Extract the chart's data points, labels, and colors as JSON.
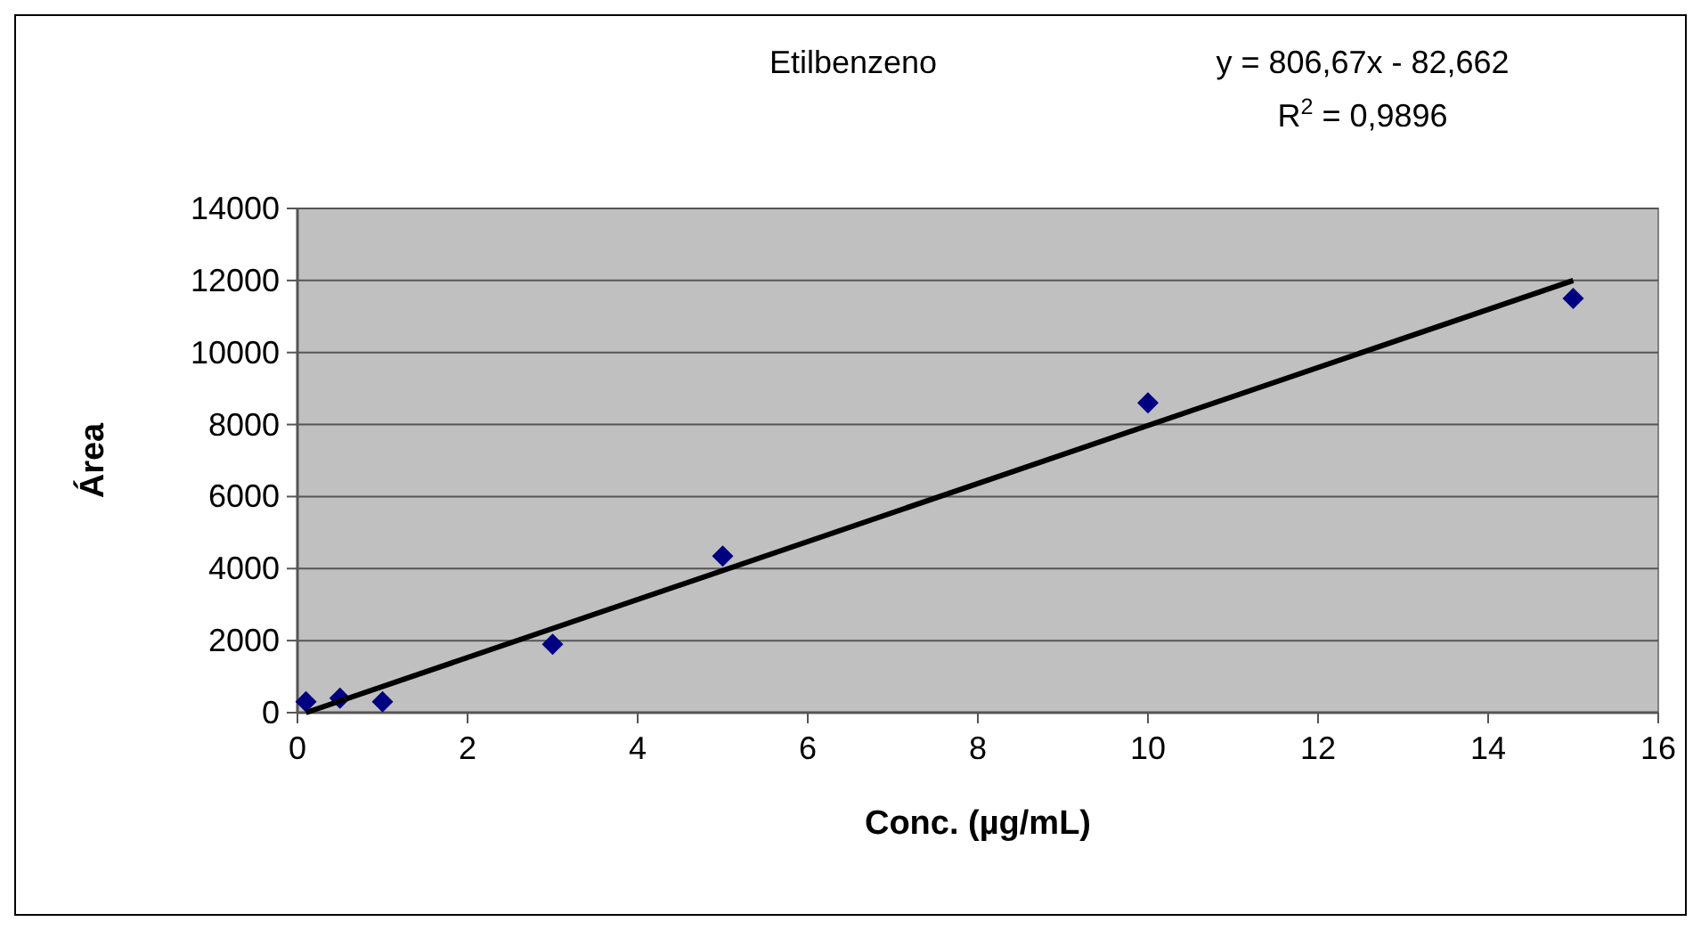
{
  "chart_data": {
    "type": "scatter",
    "title": "Etilbenzeno",
    "xlabel": "Conc. (µg/mL)",
    "ylabel": "Área",
    "annotations": [
      "y = 806,67x - 82,662",
      "R$^{2}$ = 0,9896"
    ],
    "series": [
      {
        "color": "#000080",
        "x": [
          0.1,
          0.5,
          1,
          3,
          5,
          10,
          15
        ],
        "values": [
          300,
          400,
          300,
          1900,
          4350,
          8600,
          11500
        ],
        "marker": "diamond"
      },
      {
        "type": "line",
        "color": "#000000",
        "x": [
          0.1,
          15
        ],
        "values": [
          0,
          12000
        ],
        "marker": "none",
        "line_style": "solid"
      }
    ],
    "xlim": [
      0,
      16
    ],
    "xticks": [
      0,
      2,
      4,
      6,
      8,
      10,
      12,
      14,
      16
    ],
    "ylim": [
      0,
      14000
    ],
    "yticks": [
      0,
      2000,
      4000,
      6000,
      8000,
      10000,
      12000,
      14000
    ],
    "grid": "y"
  }
}
